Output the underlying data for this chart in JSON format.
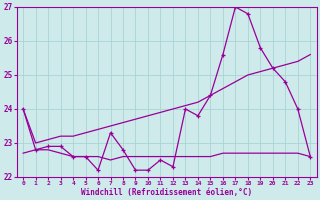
{
  "x": [
    0,
    1,
    2,
    3,
    4,
    5,
    6,
    7,
    8,
    9,
    10,
    11,
    12,
    13,
    14,
    15,
    16,
    17,
    18,
    19,
    20,
    21,
    22,
    23
  ],
  "line_main": [
    24.0,
    22.8,
    22.9,
    22.9,
    22.6,
    22.6,
    22.2,
    23.3,
    22.8,
    22.2,
    22.2,
    22.5,
    22.3,
    24.0,
    23.8,
    24.4,
    25.6,
    27.0,
    26.8,
    25.8,
    25.2,
    24.8,
    24.0,
    22.6
  ],
  "line_flat": [
    22.7,
    22.8,
    22.8,
    22.7,
    22.6,
    22.6,
    22.6,
    22.5,
    22.6,
    22.6,
    22.6,
    22.6,
    22.6,
    22.6,
    22.6,
    22.6,
    22.7,
    22.7,
    22.7,
    22.7,
    22.7,
    22.7,
    22.7,
    22.6
  ],
  "line_trend": [
    24.0,
    23.0,
    23.1,
    23.2,
    23.2,
    23.3,
    23.4,
    23.5,
    23.6,
    23.7,
    23.8,
    23.9,
    24.0,
    24.1,
    24.2,
    24.4,
    24.6,
    24.8,
    25.0,
    25.1,
    25.2,
    25.3,
    25.4,
    25.6
  ],
  "color": "#990099",
  "bg_color": "#ceeaea",
  "grid_color": "#a8d4d4",
  "xlabel": "Windchill (Refroidissement éolien,°C)",
  "ylim": [
    22,
    27
  ],
  "xlim": [
    -0.5,
    23.5
  ],
  "yticks": [
    22,
    23,
    24,
    25,
    26,
    27
  ],
  "xticks": [
    0,
    1,
    2,
    3,
    4,
    5,
    6,
    7,
    8,
    9,
    10,
    11,
    12,
    13,
    14,
    15,
    16,
    17,
    18,
    19,
    20,
    21,
    22,
    23
  ]
}
